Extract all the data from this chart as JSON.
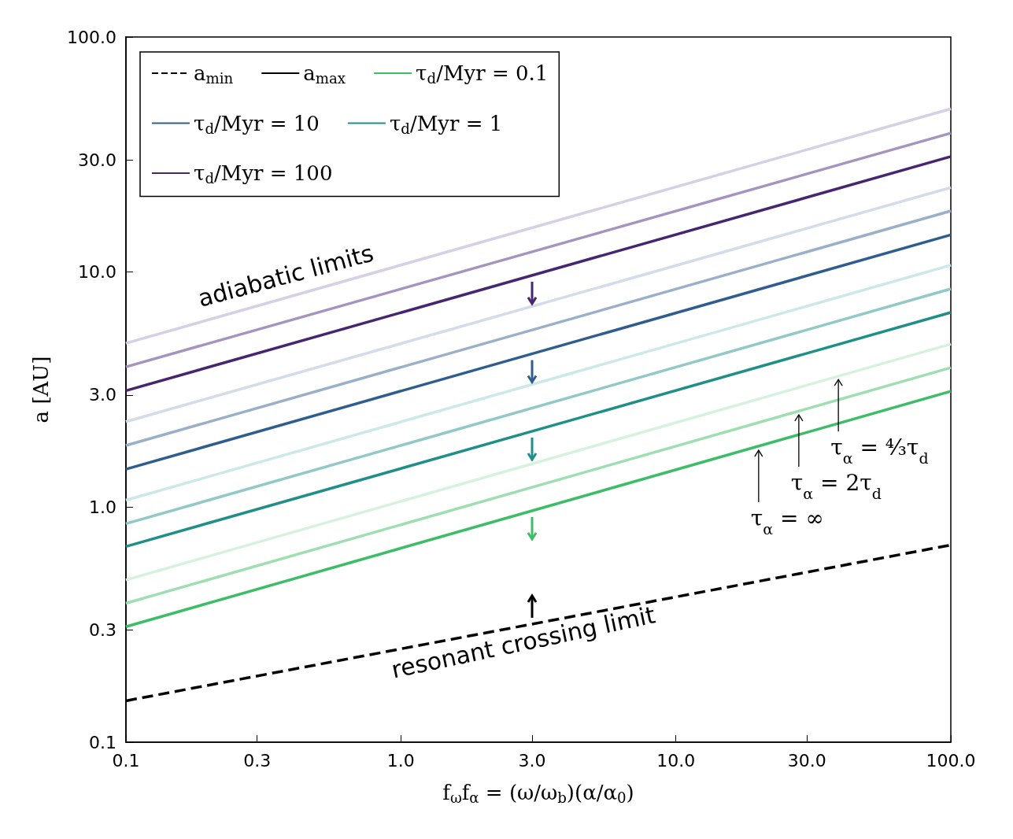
{
  "chart_data": {
    "type": "line",
    "xlabel": "f$_{ω}$f$_{α}$ = (ω/ω$_{b}$)(α/α$_{0}$)",
    "ylabel": "a [AU]",
    "x": [
      0.1,
      100
    ],
    "log": "xy",
    "xlim": [
      0.1,
      100
    ],
    "ylim": [
      0.1,
      100
    ],
    "xticks": [
      0.1,
      0.3,
      {
        "value": 1,
        "label": "1.0"
      },
      {
        "value": 3,
        "label": "3.0"
      },
      {
        "value": 10,
        "label": "10.0"
      },
      {
        "value": 30,
        "label": "30.0"
      },
      {
        "value": 100,
        "label": "100.0"
      }
    ],
    "yticks": [
      0.1,
      0.3,
      {
        "value": 1,
        "label": "1.0"
      },
      {
        "value": 3,
        "label": "3.0"
      },
      {
        "value": 10,
        "label": "10.0"
      },
      {
        "value": 30,
        "label": "30.0"
      },
      {
        "value": 100,
        "label": "100.0"
      }
    ],
    "grid": false,
    "legend": "top left",
    "marker": "none",
    "series": [
      {
        "name": "a$_{min}$",
        "color": "#000000",
        "line_style": "dashed",
        "values": [
          0.15,
          0.69
        ]
      },
      {
        "name": "a$_{max}$",
        "color": "#000000",
        "values": [
          null,
          null
        ]
      },
      {
        "name": "τ$_{d}$/Myr = 0.1",
        "color": "#3dbd68",
        "values": [
          0.31,
          3.11
        ]
      },
      {
        "name": "τ$_{d}$/Myr = 10",
        "color": "#2f5e8e",
        "values": [
          1.45,
          14.4
        ]
      },
      {
        "name": "τ$_{d}$/Myr = 1",
        "color": "#1f8f88",
        "values": [
          0.68,
          6.73
        ]
      },
      {
        "name": "τ$_{d}$/Myr = 100",
        "color": "#45266f",
        "values": [
          3.13,
          31.0
        ]
      },
      {
        "color": "#9ddfb0",
        "values": [
          0.39,
          3.92
        ]
      },
      {
        "color": "#d6f2de",
        "values": [
          0.49,
          4.94
        ]
      },
      {
        "color": "#90c9c6",
        "values": [
          0.85,
          8.48
        ]
      },
      {
        "color": "#cde8e8",
        "values": [
          1.07,
          10.7
        ]
      },
      {
        "color": "#9bb0c8",
        "values": [
          1.83,
          18.2
        ]
      },
      {
        "color": "#d3dce8",
        "values": [
          2.31,
          22.9
        ]
      },
      {
        "color": "#a594bf",
        "values": [
          3.95,
          39.0
        ]
      },
      {
        "color": "#d7cfe4",
        "values": [
          4.98,
          49.5
        ]
      }
    ],
    "annotations": [
      "adiabatic limits",
      "resonant crossing limit",
      {
        "text": "τ$_{α}$ = ∞",
        "x": 20,
        "y": 1.8
      },
      {
        "text": "τ$_{α}$ = 2τ$_{d}$",
        "x": 28,
        "y": 2.55
      },
      {
        "text": "τ$_{α}$ = ⁴⁄₃τ$_{d}$",
        "x": 39,
        "y": 3.6
      }
    ]
  }
}
